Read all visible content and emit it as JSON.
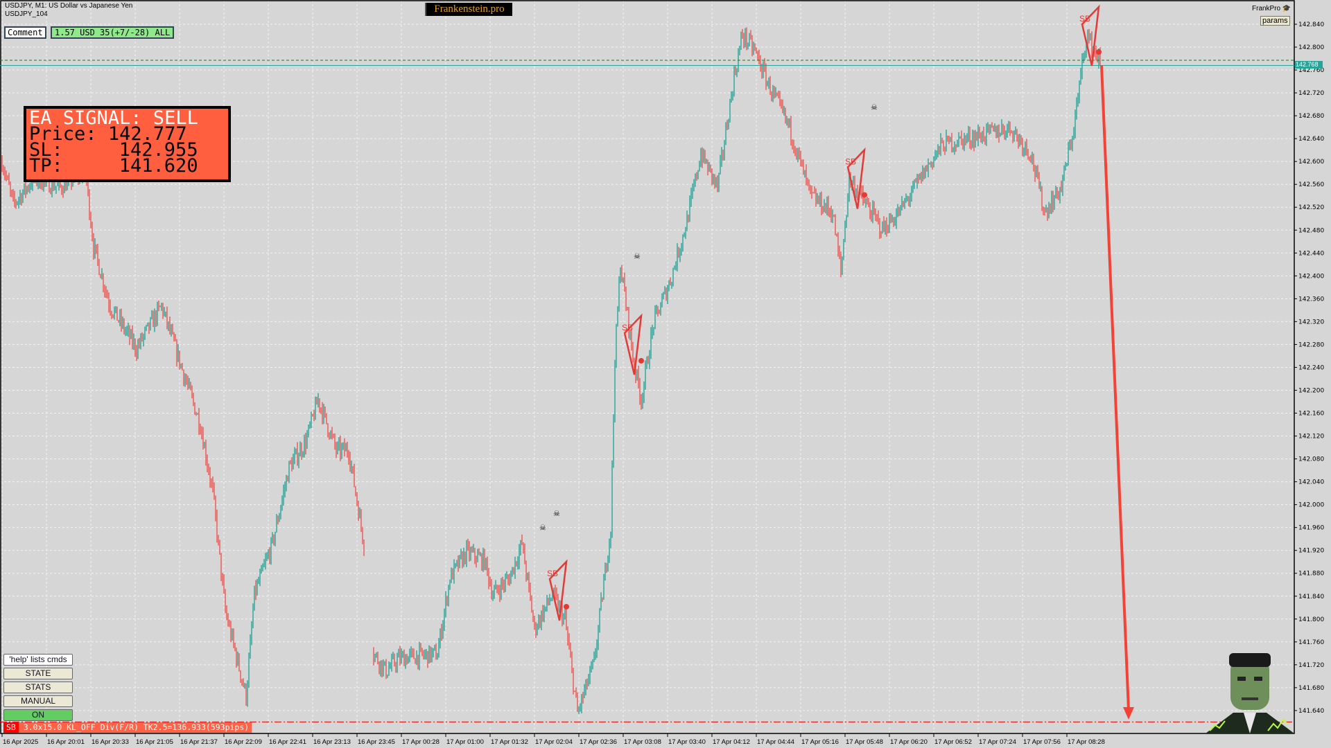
{
  "header": {
    "symbol_line": "USDJPY, M1:  US Dollar vs Japanese Yen",
    "ea_line": "USDJPY_104"
  },
  "brand": "Frankenstein.pro",
  "comment": {
    "label": "Comment",
    "value": "1.57 USD 35(+7/-28) ALL"
  },
  "signal": {
    "title": "EA SIGNAL: SELL",
    "price_label": "Price:",
    "price": "142.777",
    "sl_label": "SL:",
    "sl": "142.955",
    "tp_label": "TP:",
    "tp": "141.620"
  },
  "top_right": {
    "label": "FrankPro",
    "icon": "graduation-cap-icon",
    "params_button": "params"
  },
  "buttons": {
    "help": "'help' lists cmds",
    "state": "STATE",
    "stats": "STATS",
    "manual": "MANUAL",
    "on": "ON"
  },
  "status_bar": {
    "tag": "SB",
    "text": "3.0x15.0 KL_OFF Div(F/R) TK2.5=136.933(593pips)"
  },
  "current_price": "142.768",
  "colors": {
    "bull": "#26a69a",
    "bear": "#ef5350",
    "signal_box": "#ff5e3f",
    "arrow": "#f44336",
    "bid_line": "#26a69a",
    "entry_line": "#1a7a1a",
    "tp_line": "#e00000"
  },
  "chart_data": {
    "type": "candlestick",
    "symbol": "USDJPY",
    "timeframe": "M1",
    "ylim": [
      141.62,
      142.86
    ],
    "y_ticks": [
      "142.840",
      "142.800",
      "142.760",
      "142.720",
      "142.680",
      "142.640",
      "142.600",
      "142.560",
      "142.520",
      "142.480",
      "142.440",
      "142.400",
      "142.360",
      "142.320",
      "142.280",
      "142.240",
      "142.200",
      "142.160",
      "142.120",
      "142.080",
      "142.040",
      "142.000",
      "141.960",
      "141.920",
      "141.880",
      "141.840",
      "141.800",
      "141.760",
      "141.720",
      "141.680",
      "141.640"
    ],
    "x_ticks": [
      "16 Apr 2025",
      "16 Apr 20:01",
      "16 Apr 20:33",
      "16 Apr 21:05",
      "16 Apr 21:37",
      "16 Apr 22:09",
      "16 Apr 22:41",
      "16 Apr 23:13",
      "16 Apr 23:45",
      "17 Apr 00:28",
      "17 Apr 01:00",
      "17 Apr 01:32",
      "17 Apr 02:04",
      "17 Apr 02:36",
      "17 Apr 03:08",
      "17 Apr 03:40",
      "17 Apr 04:12",
      "17 Apr 04:44",
      "17 Apr 05:16",
      "17 Apr 05:48",
      "17 Apr 06:20",
      "17 Apr 06:52",
      "17 Apr 07:24",
      "17 Apr 07:56",
      "17 Apr 08:28"
    ],
    "price_keypoints": [
      [
        "19:29",
        142.6
      ],
      [
        "19:37",
        142.525
      ],
      [
        "19:52",
        142.57
      ],
      [
        "20:11",
        142.555
      ],
      [
        "20:29",
        142.585
      ],
      [
        "20:35",
        142.451
      ],
      [
        "20:47",
        142.347
      ],
      [
        "21:06",
        142.273
      ],
      [
        "21:24",
        142.347
      ],
      [
        "21:36",
        142.258
      ],
      [
        "21:52",
        142.14
      ],
      [
        "22:01",
        142.021
      ],
      [
        "22:10",
        141.813
      ],
      [
        "22:25",
        141.665
      ],
      [
        "22:31",
        141.843
      ],
      [
        "22:44",
        141.932
      ],
      [
        "22:56",
        142.065
      ],
      [
        "23:08",
        142.11
      ],
      [
        "23:17",
        142.184
      ],
      [
        "23:30",
        142.095
      ],
      [
        "23:39",
        142.095
      ],
      [
        "23:51",
        141.917
      ],
      [
        "23:57",
        141.739
      ],
      [
        "00:06",
        141.709
      ],
      [
        "00:15",
        141.731
      ],
      [
        "00:43",
        141.739
      ],
      [
        "00:52",
        141.872
      ],
      [
        "01:04",
        141.917
      ],
      [
        "01:17",
        141.902
      ],
      [
        "01:23",
        141.843
      ],
      [
        "01:35",
        141.872
      ],
      [
        "01:44",
        141.932
      ],
      [
        "01:53",
        141.783
      ],
      [
        "02:06",
        141.843
      ],
      [
        "02:15",
        141.798
      ],
      [
        "02:24",
        141.635
      ],
      [
        "02:36",
        141.724
      ],
      [
        "02:48",
        141.961
      ],
      [
        "02:51",
        142.258
      ],
      [
        "02:55",
        142.422
      ],
      [
        "03:04",
        142.258
      ],
      [
        "03:10",
        142.184
      ],
      [
        "03:19",
        142.318
      ],
      [
        "03:31",
        142.392
      ],
      [
        "03:43",
        142.496
      ],
      [
        "03:53",
        142.614
      ],
      [
        "04:05",
        142.555
      ],
      [
        "04:17",
        142.748
      ],
      [
        "04:23",
        142.822
      ],
      [
        "04:32",
        142.793
      ],
      [
        "04:42",
        142.733
      ],
      [
        "04:57",
        142.659
      ],
      [
        "05:12",
        142.54
      ],
      [
        "05:28",
        142.511
      ],
      [
        "05:34",
        142.407
      ],
      [
        "05:40",
        142.57
      ],
      [
        "05:52",
        142.525
      ],
      [
        "06:04",
        142.481
      ],
      [
        "06:16",
        142.511
      ],
      [
        "06:35",
        142.585
      ],
      [
        "06:47",
        142.629
      ],
      [
        "07:12",
        142.644
      ],
      [
        "07:36",
        142.659
      ],
      [
        "07:51",
        142.614
      ],
      [
        "08:01",
        142.511
      ],
      [
        "08:13",
        142.555
      ],
      [
        "08:22",
        142.659
      ],
      [
        "08:31",
        142.822
      ],
      [
        "08:37",
        142.793
      ],
      [
        "08:42",
        142.768
      ]
    ],
    "levels": {
      "bid": 142.768,
      "entry": 142.777,
      "take_profit": 141.62
    },
    "signals": [
      {
        "label": "SB",
        "time": "02:10",
        "price": 141.87
      },
      {
        "label": "SB",
        "time": "03:04",
        "price": 142.3
      },
      {
        "label": "SB",
        "time": "05:45",
        "price": 142.59
      },
      {
        "label": "SB",
        "time": "08:34",
        "price": 142.84
      }
    ],
    "grid": true
  }
}
